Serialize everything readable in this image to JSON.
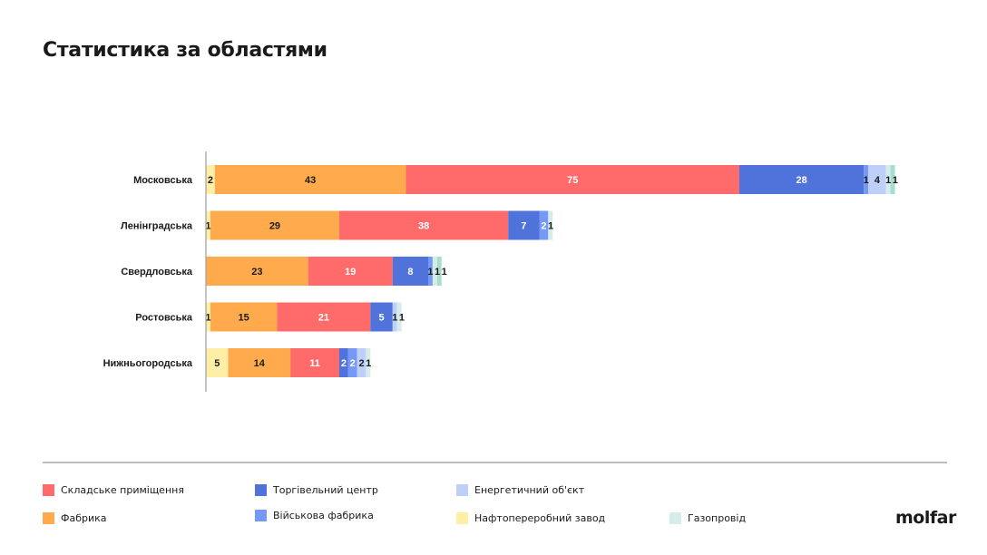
{
  "title": "Статистика за областями",
  "chart_data": {
    "type": "bar",
    "orientation": "horizontal",
    "stacked": true,
    "categories": [
      "Московська",
      "Ленінградська",
      "Свердловська",
      "Ростовська",
      "Нижньогородська"
    ],
    "series": [
      {
        "name": "Нафтопереробний завод",
        "color": "#FFEFA6",
        "values": [
          2,
          1,
          0,
          1,
          5
        ]
      },
      {
        "name": "Фабрика",
        "color": "#FFAA4C",
        "values": [
          43,
          29,
          23,
          15,
          14
        ]
      },
      {
        "name": "Складське приміщення",
        "color": "#FF6B6B",
        "values": [
          75,
          38,
          19,
          21,
          11
        ]
      },
      {
        "name": "Торгівельний центр",
        "color": "#4F73DB",
        "values": [
          28,
          7,
          8,
          5,
          2
        ]
      },
      {
        "name": "Військова фабрика",
        "color": "#7599F5",
        "values": [
          1,
          2,
          1,
          0,
          2
        ]
      },
      {
        "name": "Енергетичний об'єкт",
        "color": "#BECFFA",
        "values": [
          4,
          0,
          0,
          1,
          2
        ]
      },
      {
        "name": "Газопровід",
        "color": "#D6ECE8",
        "values": [
          1,
          1,
          1,
          1,
          1
        ]
      },
      {
        "color": "#A8DDCC",
        "values": [
          1,
          0,
          1,
          0,
          0
        ]
      }
    ],
    "legend_placement": "bottom",
    "grid": false
  },
  "legend": [
    {
      "label": "Складське приміщення",
      "color": "#FF6B6B"
    },
    {
      "label": "Торгівельний центр",
      "color": "#4F73DB"
    },
    {
      "label": "Енергетичний об'єкт",
      "color": "#BECFFA"
    },
    {
      "label": "Фабрика",
      "color": "#FFAA4C"
    },
    {
      "label": "Військова фабрика",
      "color": "#7599F5"
    },
    {
      "label": "Нафтопереробний завод",
      "color": "#FFEFA6"
    },
    {
      "label": "Газопровід",
      "color": "#D6ECE8"
    }
  ],
  "logo": "molfar"
}
